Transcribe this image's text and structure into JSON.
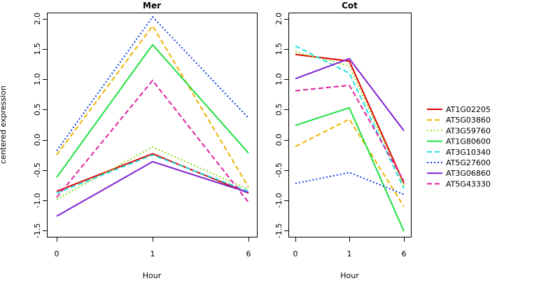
{
  "chart_data": {
    "type": "line",
    "ylabel": "centered expression",
    "x": [
      "0",
      "1",
      "6"
    ],
    "ylim": [
      -1.6,
      2.1
    ],
    "yticks": [
      "-1.5",
      "-1.0",
      "-0.5",
      "0.0",
      "0.5",
      "1.0",
      "1.5",
      "2.0"
    ],
    "panels": [
      {
        "title": "Mer",
        "xlabel": "Hour",
        "series": [
          {
            "name": "AT1G02205",
            "values": [
              -0.85,
              -0.23,
              -0.88
            ]
          },
          {
            "name": "AT5G03860",
            "values": [
              -0.25,
              1.88,
              -0.78
            ]
          },
          {
            "name": "AT3G59760",
            "values": [
              -0.98,
              -0.12,
              -0.82
            ]
          },
          {
            "name": "AT1G80600",
            "values": [
              -0.62,
              1.57,
              -0.22
            ]
          },
          {
            "name": "AT3G10340",
            "values": [
              -0.88,
              -0.25,
              -0.85
            ]
          },
          {
            "name": "AT5G27600",
            "values": [
              -0.18,
              2.03,
              0.36
            ]
          },
          {
            "name": "AT3G06860",
            "values": [
              -1.26,
              -0.36,
              -0.87
            ]
          },
          {
            "name": "AT5G43330",
            "values": [
              -0.95,
              0.98,
              -1.03
            ]
          }
        ]
      },
      {
        "title": "Cot",
        "xlabel": "Hour",
        "series": [
          {
            "name": "AT1G02205",
            "values": [
              1.41,
              1.3,
              -0.72
            ]
          },
          {
            "name": "AT5G03860",
            "values": [
              -0.11,
              0.34,
              -1.1
            ]
          },
          {
            "name": "AT3G59760",
            "values": [
              1.45,
              1.22,
              -0.75
            ]
          },
          {
            "name": "AT1G80600",
            "values": [
              0.24,
              0.53,
              -1.51
            ]
          },
          {
            "name": "AT3G10340",
            "values": [
              1.55,
              1.1,
              -0.8
            ]
          },
          {
            "name": "AT5G27600",
            "values": [
              -0.72,
              -0.54,
              -0.9
            ]
          },
          {
            "name": "AT3G06860",
            "values": [
              1.01,
              1.34,
              0.15
            ]
          },
          {
            "name": "AT5G43330",
            "values": [
              0.81,
              0.9,
              -0.68
            ]
          }
        ]
      }
    ],
    "legend": {
      "placement": "right",
      "items": [
        {
          "name": "AT1G02205",
          "color": "#e00000",
          "dash": "solid"
        },
        {
          "name": "AT5G03860",
          "color": "#f0b000",
          "dash": "dashed"
        },
        {
          "name": "AT3G59760",
          "color": "#90e020",
          "dash": "dotted"
        },
        {
          "name": "AT1G80600",
          "color": "#20e040",
          "dash": "solid"
        },
        {
          "name": "AT3G10340",
          "color": "#20e0e0",
          "dash": "dashed"
        },
        {
          "name": "AT5G27600",
          "color": "#1040e0",
          "dash": "dotted"
        },
        {
          "name": "AT3G06860",
          "color": "#8020d0",
          "dash": "solid"
        },
        {
          "name": "AT5G43330",
          "color": "#e020a0",
          "dash": "dashed"
        }
      ]
    }
  }
}
